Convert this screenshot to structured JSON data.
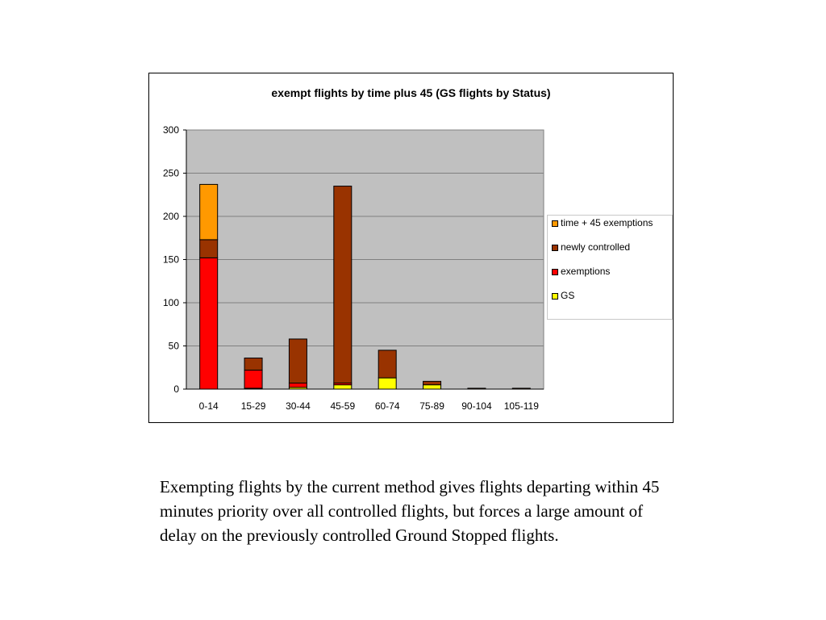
{
  "chart_data": {
    "type": "bar",
    "stacked": true,
    "title": "exempt flights by time plus 45 (GS flights by Status)",
    "xlabel": "",
    "ylabel": "",
    "ylim": [
      0,
      300
    ],
    "yticks": [
      "300",
      "250",
      "200",
      "150",
      "100",
      "50",
      "0"
    ],
    "categories": [
      "0-14",
      "15-29",
      "30-44",
      "45-59",
      "60-74",
      "75-89",
      "90-104",
      "105-119"
    ],
    "series": [
      {
        "name": "GS",
        "color": "#ffff00",
        "values": [
          0,
          1,
          2,
          5,
          13,
          5,
          0,
          0
        ]
      },
      {
        "name": "exemptions",
        "color": "#ff0000",
        "values": [
          152,
          21,
          5,
          2,
          0,
          0,
          0,
          0
        ]
      },
      {
        "name": "newly controlled",
        "color": "#993300",
        "values": [
          21,
          14,
          51,
          228,
          32,
          4,
          1,
          1
        ]
      },
      {
        "name": "time + 45 exemptions",
        "color": "#ff9900",
        "values": [
          64,
          0,
          0,
          0,
          0,
          0,
          0,
          0
        ]
      }
    ],
    "legend_order": [
      "time + 45 exemptions",
      "newly controlled",
      "exemptions",
      "GS"
    ],
    "grid": true,
    "legend_position": "right",
    "plot_background": "#c0c0c0"
  },
  "caption": "Exempting flights by the current method gives flights departing within 45 minutes priority over all controlled flights, but forces a large amount of delay on the previously controlled Ground Stopped flights."
}
